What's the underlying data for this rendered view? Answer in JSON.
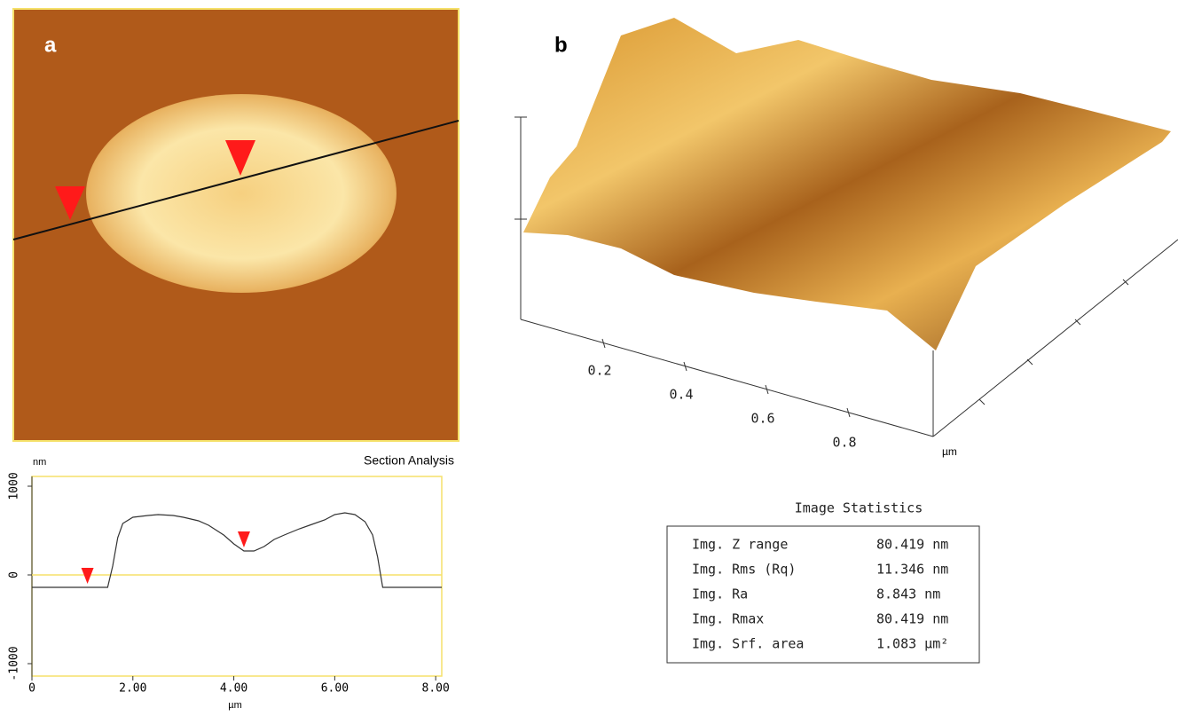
{
  "panel_a": {
    "label": "a"
  },
  "panel_b": {
    "label": "b",
    "axis_ticks": [
      "0.2",
      "0.4",
      "0.6",
      "0.8"
    ],
    "axis_unit": "µm"
  },
  "chart_data": {
    "type": "line",
    "title": "Section Analysis",
    "y_unit": "nm",
    "x_label": "µm",
    "x": [
      0,
      0.5,
      1.0,
      1.5,
      1.6,
      1.7,
      1.8,
      2.0,
      2.3,
      2.5,
      2.8,
      3.0,
      3.3,
      3.5,
      3.8,
      4.0,
      4.2,
      4.4,
      4.6,
      4.8,
      5.0,
      5.3,
      5.5,
      5.8,
      6.0,
      6.2,
      6.4,
      6.6,
      6.75,
      6.85,
      6.95,
      7.5,
      8.12
    ],
    "values": [
      -140,
      -140,
      -140,
      -140,
      100,
      420,
      580,
      650,
      670,
      680,
      670,
      650,
      610,
      560,
      450,
      350,
      270,
      270,
      320,
      400,
      450,
      520,
      560,
      620,
      680,
      700,
      680,
      600,
      450,
      200,
      -140,
      -140,
      -140
    ],
    "color": "#333333",
    "reference_y": 0,
    "cursor_x": [
      1.1,
      4.2
    ],
    "xlim": [
      0,
      8.12
    ],
    "ylim": [
      -1140,
      1110
    ],
    "xticks": [
      0,
      {
        "value": 2,
        "label": "2.00"
      },
      {
        "value": 4,
        "label": "4.00"
      },
      {
        "value": 6,
        "label": "6.00"
      },
      {
        "value": 8,
        "label": "8.00"
      }
    ],
    "yticks": [
      1000,
      0,
      -1000
    ]
  },
  "statistics": {
    "title": "Image Statistics",
    "rows": [
      [
        "Img. Z range",
        "80.419 nm"
      ],
      [
        "Img. Rms (Rq)",
        "11.346 nm"
      ],
      [
        "Img. Ra",
        "8.843 nm"
      ],
      [
        "Img. Rmax",
        "80.419 nm"
      ],
      [
        "Img. Srf. area",
        "1.083 µm²"
      ]
    ]
  }
}
